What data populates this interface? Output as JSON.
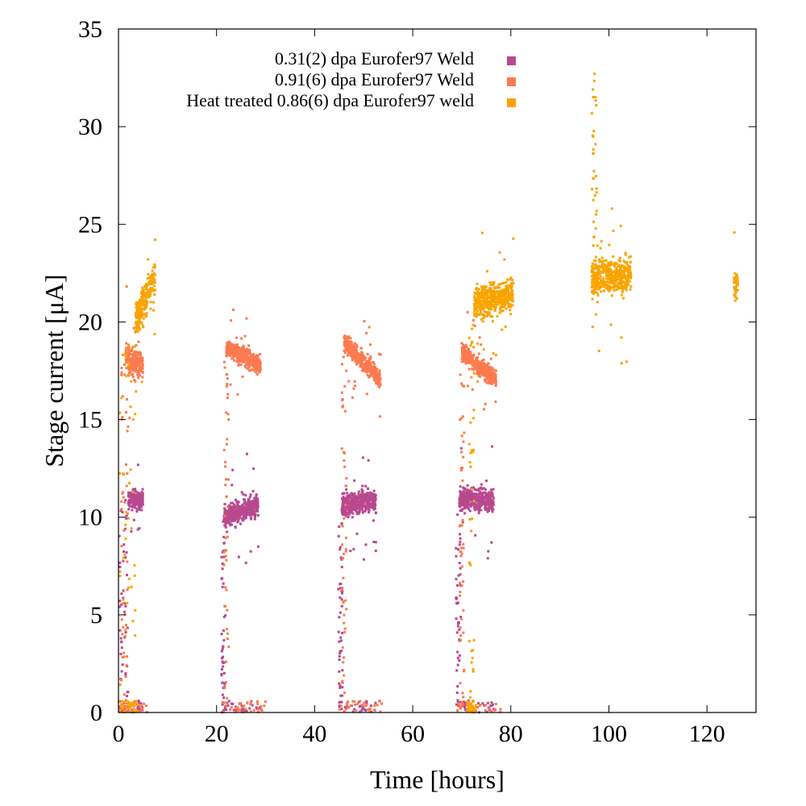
{
  "chart_data": {
    "type": "scatter",
    "title": "",
    "xlabel": "Time [hours]",
    "ylabel": "Stage current [μA]",
    "xlim": [
      0,
      130
    ],
    "ylim": [
      0,
      35
    ],
    "xticks": [
      0,
      20,
      40,
      60,
      80,
      100,
      120
    ],
    "yticks": [
      0,
      5,
      10,
      15,
      20,
      25,
      30,
      35
    ],
    "grid": false,
    "legend_position": "top-center",
    "series": [
      {
        "name": "0.31(2) dpa Eurofer97 Weld",
        "color": "#b8488f",
        "segments": [
          {
            "x": [
              2.0,
              5.0
            ],
            "y": [
              10.9,
              10.9
            ],
            "spread": 0.5
          },
          {
            "x": [
              21.5,
              28.5
            ],
            "y": [
              10.0,
              10.6
            ],
            "spread": 0.6
          },
          {
            "x": [
              45.5,
              52.5
            ],
            "y": [
              10.6,
              10.9
            ],
            "spread": 0.6
          },
          {
            "x": [
              69.5,
              76.5
            ],
            "y": [
              11.0,
              10.8
            ],
            "spread": 0.6
          }
        ],
        "transients": [
          {
            "x": [
              0.2,
              2.0
            ],
            "y": [
              0,
              11
            ]
          },
          {
            "x": [
              21.0,
              21.8
            ],
            "y": [
              0,
              10
            ]
          },
          {
            "x": [
              44.8,
              45.7
            ],
            "y": [
              0,
              10
            ]
          },
          {
            "x": [
              68.8,
              69.8
            ],
            "y": [
              0,
              10.5
            ]
          }
        ],
        "baseline_x": [
          [
            0,
            5
          ],
          [
            21,
            29
          ],
          [
            45,
            53
          ],
          [
            69,
            77
          ]
        ]
      },
      {
        "name": "0.91(6) dpa Eurofer97 Weld",
        "color": "#fc7a50",
        "segments": [
          {
            "x": [
              1.5,
              5.0
            ],
            "y": [
              18.0,
              17.8
            ],
            "spread": 0.8
          },
          {
            "x": [
              22.0,
              29.0
            ],
            "y": [
              18.7,
              17.8
            ],
            "spread": 0.5
          },
          {
            "x": [
              46.0,
              53.5
            ],
            "y": [
              19.0,
              17.0
            ],
            "spread": 0.5
          },
          {
            "x": [
              70.0,
              77.0
            ],
            "y": [
              18.5,
              17.0
            ],
            "spread": 0.5
          }
        ],
        "transients": [
          {
            "x": [
              0.5,
              2.0
            ],
            "y": [
              0,
              18
            ]
          },
          {
            "x": [
              21.5,
              22.5
            ],
            "y": [
              0,
              18.5
            ]
          },
          {
            "x": [
              45.5,
              46.5
            ],
            "y": [
              0,
              19
            ]
          },
          {
            "x": [
              69.5,
              70.5
            ],
            "y": [
              0,
              18
            ]
          }
        ],
        "baseline_x": [
          [
            0,
            6
          ],
          [
            21,
            30
          ],
          [
            45,
            54
          ],
          [
            69,
            78
          ]
        ]
      },
      {
        "name": "Heat treated 0.86(6) dpa Eurofer97 weld",
        "color": "#f9a400",
        "segments": [
          {
            "x": [
              3.5,
              7.5
            ],
            "y": [
              20.0,
              22.3
            ],
            "spread": 1.0
          },
          {
            "x": [
              72.5,
              80.5
            ],
            "y": [
              21.0,
              21.4
            ],
            "spread": 0.9
          },
          {
            "x": [
              96.5,
              104.5
            ],
            "y": [
              22.3,
              22.4
            ],
            "spread": 0.9
          },
          {
            "x": [
              125.5,
              126.3
            ],
            "y": [
              22.0,
              22.0
            ],
            "spread": 0.8
          }
        ],
        "transients": [
          {
            "x": [
              0.3,
              3.5
            ],
            "y": [
              0,
              20
            ]
          },
          {
            "x": [
              71.5,
              72.5
            ],
            "y": [
              0,
              20
            ]
          },
          {
            "x": [
              96.5,
              97.5
            ],
            "y": [
              20,
              33
            ]
          }
        ],
        "baseline_x": [
          [
            0,
            4
          ],
          [
            71,
            73
          ]
        ]
      }
    ]
  }
}
